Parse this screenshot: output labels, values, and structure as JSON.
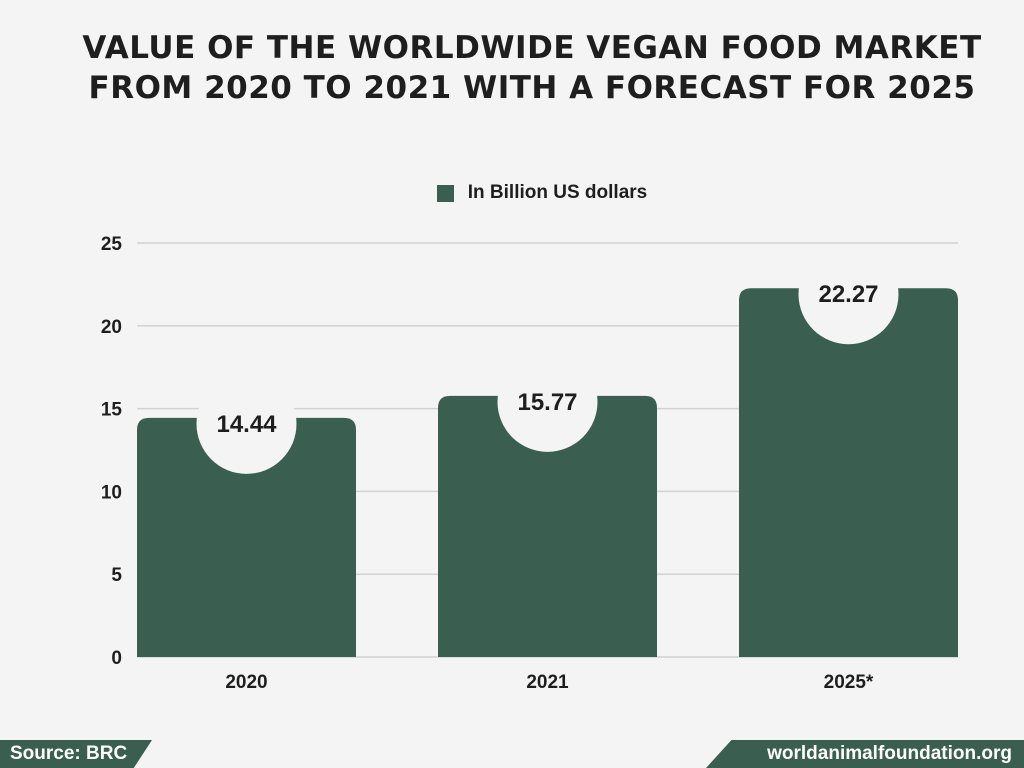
{
  "chart_data": {
    "type": "bar",
    "title_lines": [
      "VALUE OF THE WORLDWIDE VEGAN FOOD MARKET",
      "FROM 2020 TO 2021 WITH A FORECAST FOR 2025"
    ],
    "categories": [
      "2020",
      "2021",
      "2025*"
    ],
    "series": [
      {
        "name": "In Billion US dollars",
        "values": [
          14.44,
          15.77,
          22.27
        ],
        "labels": [
          "14.44",
          "15.77",
          "22.27"
        ]
      }
    ],
    "ylim": [
      0,
      25
    ],
    "yticks": [
      0,
      5,
      10,
      15,
      20,
      25
    ],
    "grid": true,
    "legend_position": "top-center",
    "xlabel": "",
    "ylabel": ""
  },
  "colors": {
    "bar": "#3a5f50",
    "grid": "#d2d2d2",
    "label_bubble": "#f4f4f4",
    "text": "#1e1e1e"
  },
  "footer": {
    "source": "Source: BRC",
    "site": "worldanimalfoundation.org"
  }
}
